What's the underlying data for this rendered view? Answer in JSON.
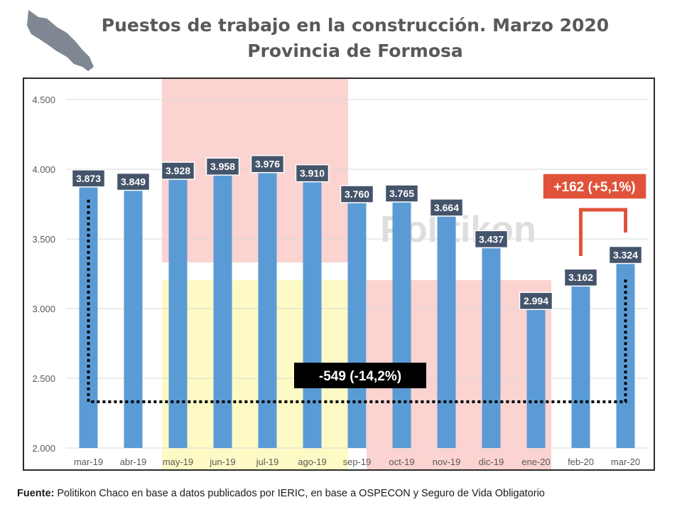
{
  "title_line1": "Puestos de trabajo en la construcción. Marzo 2020",
  "title_line2": "Provincia de Formosa",
  "source_label": "Fuente:",
  "source_text": " Politikon Chaco en base a datos publicados por IERIC, en base a OSPECON y Seguro de Vida Obligatorio",
  "watermark": "Politikon",
  "colors": {
    "bar": "#5b9bd5",
    "label_bg": "#44546a",
    "callout_red": "#e0533a",
    "highlight_red": "#fbd3d0",
    "highlight_yellow": "#fdfac5"
  },
  "chart_data": {
    "type": "bar",
    "categories": [
      "mar-19",
      "abr-19",
      "may-19",
      "jun-19",
      "jul-19",
      "ago-19",
      "sep-19",
      "oct-19",
      "nov-19",
      "dic-19",
      "ene-20",
      "feb-20",
      "mar-20"
    ],
    "values": [
      3873,
      3849,
      3928,
      3958,
      3976,
      3910,
      3760,
      3765,
      3664,
      3437,
      2994,
      3162,
      3324
    ],
    "value_labels": [
      "3.873",
      "3.849",
      "3.928",
      "3.958",
      "3.976",
      "3.910",
      "3.760",
      "3.765",
      "3.664",
      "3.437",
      "2.994",
      "3.162",
      "3.324"
    ],
    "ylim": [
      2000,
      4500
    ],
    "yticks": [
      2000,
      2500,
      3000,
      3500,
      4000,
      4500
    ],
    "ytick_labels": [
      "2.000",
      "2.500",
      "3.000",
      "3.500",
      "4.000",
      "4.500"
    ],
    "grid": true,
    "annotations": [
      {
        "text": "-549 (-14,2%)",
        "from": "mar-19",
        "to": "mar-20"
      },
      {
        "text": "+162 (+5,1%)",
        "from": "feb-20",
        "to": "mar-20"
      }
    ]
  }
}
